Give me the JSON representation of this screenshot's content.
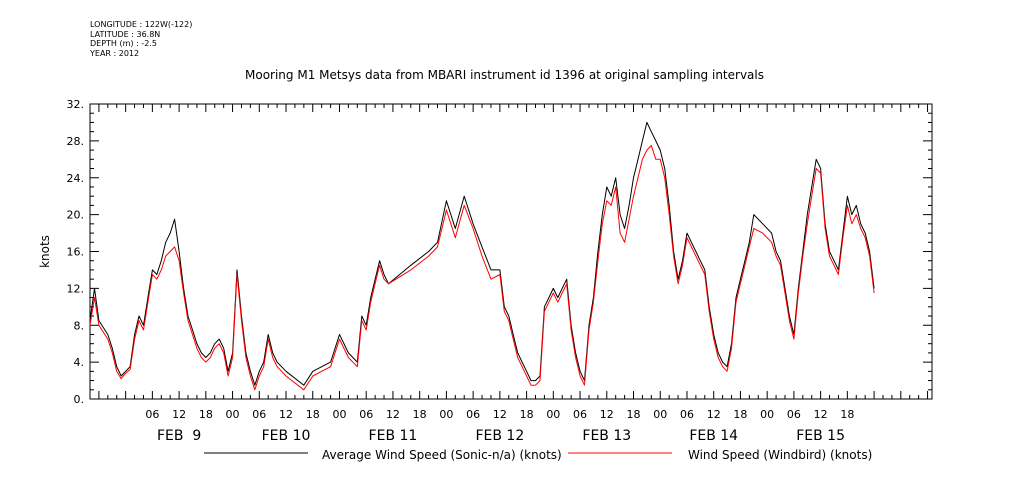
{
  "meta": {
    "longitude": "LONGITUDE : 122W(-122)",
    "latitude": "LATITUDE : 36.8N",
    "depth": "DEPTH (m) : -2.5",
    "year": "YEAR : 2012"
  },
  "chart_data": {
    "type": "line",
    "title": "Mooring M1 Metsys data from MBARI instrument id 1396 at original sampling intervals",
    "ylabel": "knots",
    "xlabel": "",
    "ylim": [
      0,
      32
    ],
    "xlim_hours": [
      -8,
      181
    ],
    "y_ticks": [
      0,
      4,
      8,
      12,
      16,
      20,
      24,
      28,
      32
    ],
    "y_tick_labels": [
      "0.",
      "4.",
      "8.",
      "12.",
      "16.",
      "20.",
      "24.",
      "28.",
      "32."
    ],
    "hour_tick_labels": [
      "06",
      "12",
      "18",
      "00",
      "06",
      "12",
      "18",
      "00",
      "06",
      "12",
      "18",
      "00",
      "06",
      "12",
      "18",
      "00",
      "06",
      "12",
      "18",
      "00",
      "06",
      "12",
      "18",
      "00",
      "06",
      "12",
      "18"
    ],
    "day_labels": [
      "FEB  9",
      "FEB 10",
      "FEB 11",
      "FEB 12",
      "FEB 13",
      "FEB 14",
      "FEB 15"
    ],
    "grid": false,
    "legend_position": "bottom",
    "series": [
      {
        "name": "Average Wind Speed (Sonic-n/a) (knots)",
        "color": "#000000",
        "points": [
          [
            -8,
            8.5
          ],
          [
            -7,
            12
          ],
          [
            -6,
            8.5
          ],
          [
            -4,
            7
          ],
          [
            -3,
            5.5
          ],
          [
            -2,
            3.5
          ],
          [
            -1,
            2.5
          ],
          [
            0,
            3
          ],
          [
            1,
            3.5
          ],
          [
            2,
            7
          ],
          [
            3,
            9
          ],
          [
            4,
            8
          ],
          [
            5,
            11
          ],
          [
            6,
            14
          ],
          [
            7,
            13.5
          ],
          [
            8,
            15
          ],
          [
            9,
            17
          ],
          [
            10,
            18
          ],
          [
            11,
            19.5
          ],
          [
            12,
            16
          ],
          [
            13,
            12
          ],
          [
            14,
            9
          ],
          [
            15,
            7.5
          ],
          [
            16,
            6
          ],
          [
            17,
            5
          ],
          [
            18,
            4.5
          ],
          [
            19,
            5
          ],
          [
            20,
            6
          ],
          [
            21,
            6.5
          ],
          [
            22,
            5.5
          ],
          [
            23,
            3
          ],
          [
            24,
            5
          ],
          [
            25,
            14
          ],
          [
            26,
            9
          ],
          [
            27,
            5
          ],
          [
            28,
            3
          ],
          [
            29,
            1.5
          ],
          [
            30,
            3
          ],
          [
            31,
            4
          ],
          [
            32,
            7
          ],
          [
            33,
            5
          ],
          [
            34,
            4
          ],
          [
            35,
            3.5
          ],
          [
            36,
            3
          ],
          [
            40,
            1.5
          ],
          [
            42,
            3
          ],
          [
            44,
            3.5
          ],
          [
            46,
            4
          ],
          [
            48,
            7
          ],
          [
            50,
            5
          ],
          [
            52,
            4
          ],
          [
            53,
            9
          ],
          [
            54,
            8
          ],
          [
            55,
            11
          ],
          [
            56,
            13
          ],
          [
            57,
            15
          ],
          [
            58,
            13.5
          ],
          [
            59,
            12.5
          ],
          [
            64,
            14.5
          ],
          [
            68,
            16
          ],
          [
            70,
            17
          ],
          [
            72,
            21.5
          ],
          [
            74,
            18.5
          ],
          [
            76,
            22
          ],
          [
            78,
            19
          ],
          [
            80,
            16.5
          ],
          [
            82,
            14
          ],
          [
            84,
            14
          ],
          [
            85,
            10
          ],
          [
            86,
            9
          ],
          [
            87,
            7
          ],
          [
            88,
            5
          ],
          [
            89,
            4
          ],
          [
            90,
            3
          ],
          [
            91,
            2
          ],
          [
            92,
            2
          ],
          [
            93,
            2.5
          ],
          [
            94,
            10
          ],
          [
            95,
            11
          ],
          [
            96,
            12
          ],
          [
            97,
            11
          ],
          [
            98,
            12
          ],
          [
            99,
            13
          ],
          [
            100,
            8
          ],
          [
            101,
            5
          ],
          [
            102,
            3
          ],
          [
            103,
            2
          ],
          [
            104,
            8
          ],
          [
            105,
            11
          ],
          [
            106,
            16
          ],
          [
            107,
            20
          ],
          [
            108,
            23
          ],
          [
            109,
            22
          ],
          [
            110,
            24
          ],
          [
            111,
            20
          ],
          [
            112,
            18.5
          ],
          [
            113,
            21
          ],
          [
            114,
            24
          ],
          [
            115,
            26
          ],
          [
            116,
            28
          ],
          [
            117,
            30
          ],
          [
            118,
            29
          ],
          [
            119,
            28
          ],
          [
            120,
            27
          ],
          [
            121,
            25
          ],
          [
            122,
            21
          ],
          [
            123,
            16
          ],
          [
            124,
            13
          ],
          [
            125,
            15
          ],
          [
            126,
            18
          ],
          [
            127,
            17
          ],
          [
            128,
            16
          ],
          [
            129,
            15
          ],
          [
            130,
            14
          ],
          [
            131,
            10
          ],
          [
            132,
            7
          ],
          [
            133,
            5
          ],
          [
            134,
            4
          ],
          [
            135,
            3.5
          ],
          [
            136,
            6
          ],
          [
            137,
            11
          ],
          [
            138,
            13
          ],
          [
            139,
            15
          ],
          [
            140,
            17
          ],
          [
            141,
            20
          ],
          [
            143,
            19
          ],
          [
            145,
            18
          ],
          [
            146,
            16
          ],
          [
            147,
            15
          ],
          [
            148,
            12
          ],
          [
            149,
            9
          ],
          [
            150,
            7
          ],
          [
            151,
            12
          ],
          [
            152,
            16
          ],
          [
            153,
            20
          ],
          [
            154,
            23
          ],
          [
            155,
            26
          ],
          [
            156,
            25
          ],
          [
            157,
            19
          ],
          [
            158,
            16
          ],
          [
            159,
            15
          ],
          [
            160,
            14
          ],
          [
            161,
            18
          ],
          [
            162,
            22
          ],
          [
            163,
            20
          ],
          [
            164,
            21
          ],
          [
            165,
            19
          ],
          [
            166,
            18
          ],
          [
            167,
            16
          ],
          [
            168,
            12
          ]
        ]
      },
      {
        "name": "Wind Speed (Windbird) (knots)",
        "color": "#ff0000",
        "points": [
          [
            -8,
            8
          ],
          [
            -7,
            11
          ],
          [
            -6,
            8
          ],
          [
            -4,
            6.5
          ],
          [
            -3,
            5
          ],
          [
            -2,
            3
          ],
          [
            -1,
            2.2
          ],
          [
            0,
            2.8
          ],
          [
            1,
            3.2
          ],
          [
            2,
            6.5
          ],
          [
            3,
            8.5
          ],
          [
            4,
            7.5
          ],
          [
            5,
            10.5
          ],
          [
            6,
            13.5
          ],
          [
            7,
            13
          ],
          [
            8,
            14
          ],
          [
            9,
            15.5
          ],
          [
            10,
            16
          ],
          [
            11,
            16.5
          ],
          [
            12,
            15
          ],
          [
            13,
            11.5
          ],
          [
            14,
            8.5
          ],
          [
            15,
            7
          ],
          [
            16,
            5.5
          ],
          [
            17,
            4.5
          ],
          [
            18,
            4
          ],
          [
            19,
            4.5
          ],
          [
            20,
            5.5
          ],
          [
            21,
            6
          ],
          [
            22,
            5
          ],
          [
            23,
            2.5
          ],
          [
            24,
            4.5
          ],
          [
            25,
            13.5
          ],
          [
            26,
            8.5
          ],
          [
            27,
            4.5
          ],
          [
            28,
            2.5
          ],
          [
            29,
            1
          ],
          [
            30,
            2.5
          ],
          [
            31,
            3.5
          ],
          [
            32,
            6.5
          ],
          [
            33,
            4.5
          ],
          [
            34,
            3.5
          ],
          [
            35,
            3
          ],
          [
            36,
            2.5
          ],
          [
            40,
            1
          ],
          [
            42,
            2.5
          ],
          [
            44,
            3
          ],
          [
            46,
            3.5
          ],
          [
            48,
            6.5
          ],
          [
            50,
            4.5
          ],
          [
            52,
            3.5
          ],
          [
            53,
            8.5
          ],
          [
            54,
            7.5
          ],
          [
            55,
            10.5
          ],
          [
            56,
            12.5
          ],
          [
            57,
            14.5
          ],
          [
            58,
            13
          ],
          [
            59,
            12.5
          ],
          [
            64,
            14
          ],
          [
            68,
            15.5
          ],
          [
            70,
            16.5
          ],
          [
            72,
            20.5
          ],
          [
            74,
            17.5
          ],
          [
            76,
            21
          ],
          [
            78,
            18.5
          ],
          [
            80,
            15.5
          ],
          [
            82,
            13
          ],
          [
            84,
            13.5
          ],
          [
            85,
            9.5
          ],
          [
            86,
            8.5
          ],
          [
            87,
            6.5
          ],
          [
            88,
            4.5
          ],
          [
            89,
            3.5
          ],
          [
            90,
            2.5
          ],
          [
            91,
            1.5
          ],
          [
            92,
            1.5
          ],
          [
            93,
            2
          ],
          [
            94,
            9.5
          ],
          [
            95,
            10.5
          ],
          [
            96,
            11.5
          ],
          [
            97,
            10.5
          ],
          [
            98,
            11.5
          ],
          [
            99,
            12.5
          ],
          [
            100,
            7.5
          ],
          [
            101,
            4.5
          ],
          [
            102,
            2.5
          ],
          [
            103,
            1.5
          ],
          [
            104,
            7.5
          ],
          [
            105,
            10.5
          ],
          [
            106,
            15
          ],
          [
            107,
            19
          ],
          [
            108,
            21.5
          ],
          [
            109,
            21
          ],
          [
            110,
            23
          ],
          [
            111,
            18
          ],
          [
            112,
            17
          ],
          [
            113,
            19.5
          ],
          [
            114,
            22
          ],
          [
            115,
            24
          ],
          [
            116,
            26
          ],
          [
            117,
            27
          ],
          [
            118,
            27.5
          ],
          [
            119,
            26
          ],
          [
            120,
            26
          ],
          [
            121,
            24
          ],
          [
            122,
            20
          ],
          [
            123,
            15.5
          ],
          [
            124,
            12.5
          ],
          [
            125,
            14.5
          ],
          [
            126,
            17.5
          ],
          [
            127,
            16.5
          ],
          [
            128,
            15.5
          ],
          [
            129,
            14.5
          ],
          [
            130,
            13.5
          ],
          [
            131,
            9.5
          ],
          [
            132,
            6.5
          ],
          [
            133,
            4.5
          ],
          [
            134,
            3.5
          ],
          [
            135,
            3
          ],
          [
            136,
            5.5
          ],
          [
            137,
            10.5
          ],
          [
            138,
            12.5
          ],
          [
            139,
            14.5
          ],
          [
            140,
            16.5
          ],
          [
            141,
            18.5
          ],
          [
            143,
            18
          ],
          [
            145,
            17
          ],
          [
            146,
            15.5
          ],
          [
            147,
            14.5
          ],
          [
            148,
            11.5
          ],
          [
            149,
            8.5
          ],
          [
            150,
            6.5
          ],
          [
            151,
            11.5
          ],
          [
            152,
            15.5
          ],
          [
            153,
            19
          ],
          [
            154,
            22
          ],
          [
            155,
            25
          ],
          [
            156,
            24.5
          ],
          [
            157,
            18.5
          ],
          [
            158,
            15.5
          ],
          [
            159,
            14.5
          ],
          [
            160,
            13.5
          ],
          [
            161,
            17.5
          ],
          [
            162,
            21
          ],
          [
            163,
            19
          ],
          [
            164,
            20
          ],
          [
            165,
            18.5
          ],
          [
            166,
            17.5
          ],
          [
            167,
            15.5
          ],
          [
            168,
            11.5
          ]
        ]
      }
    ]
  }
}
